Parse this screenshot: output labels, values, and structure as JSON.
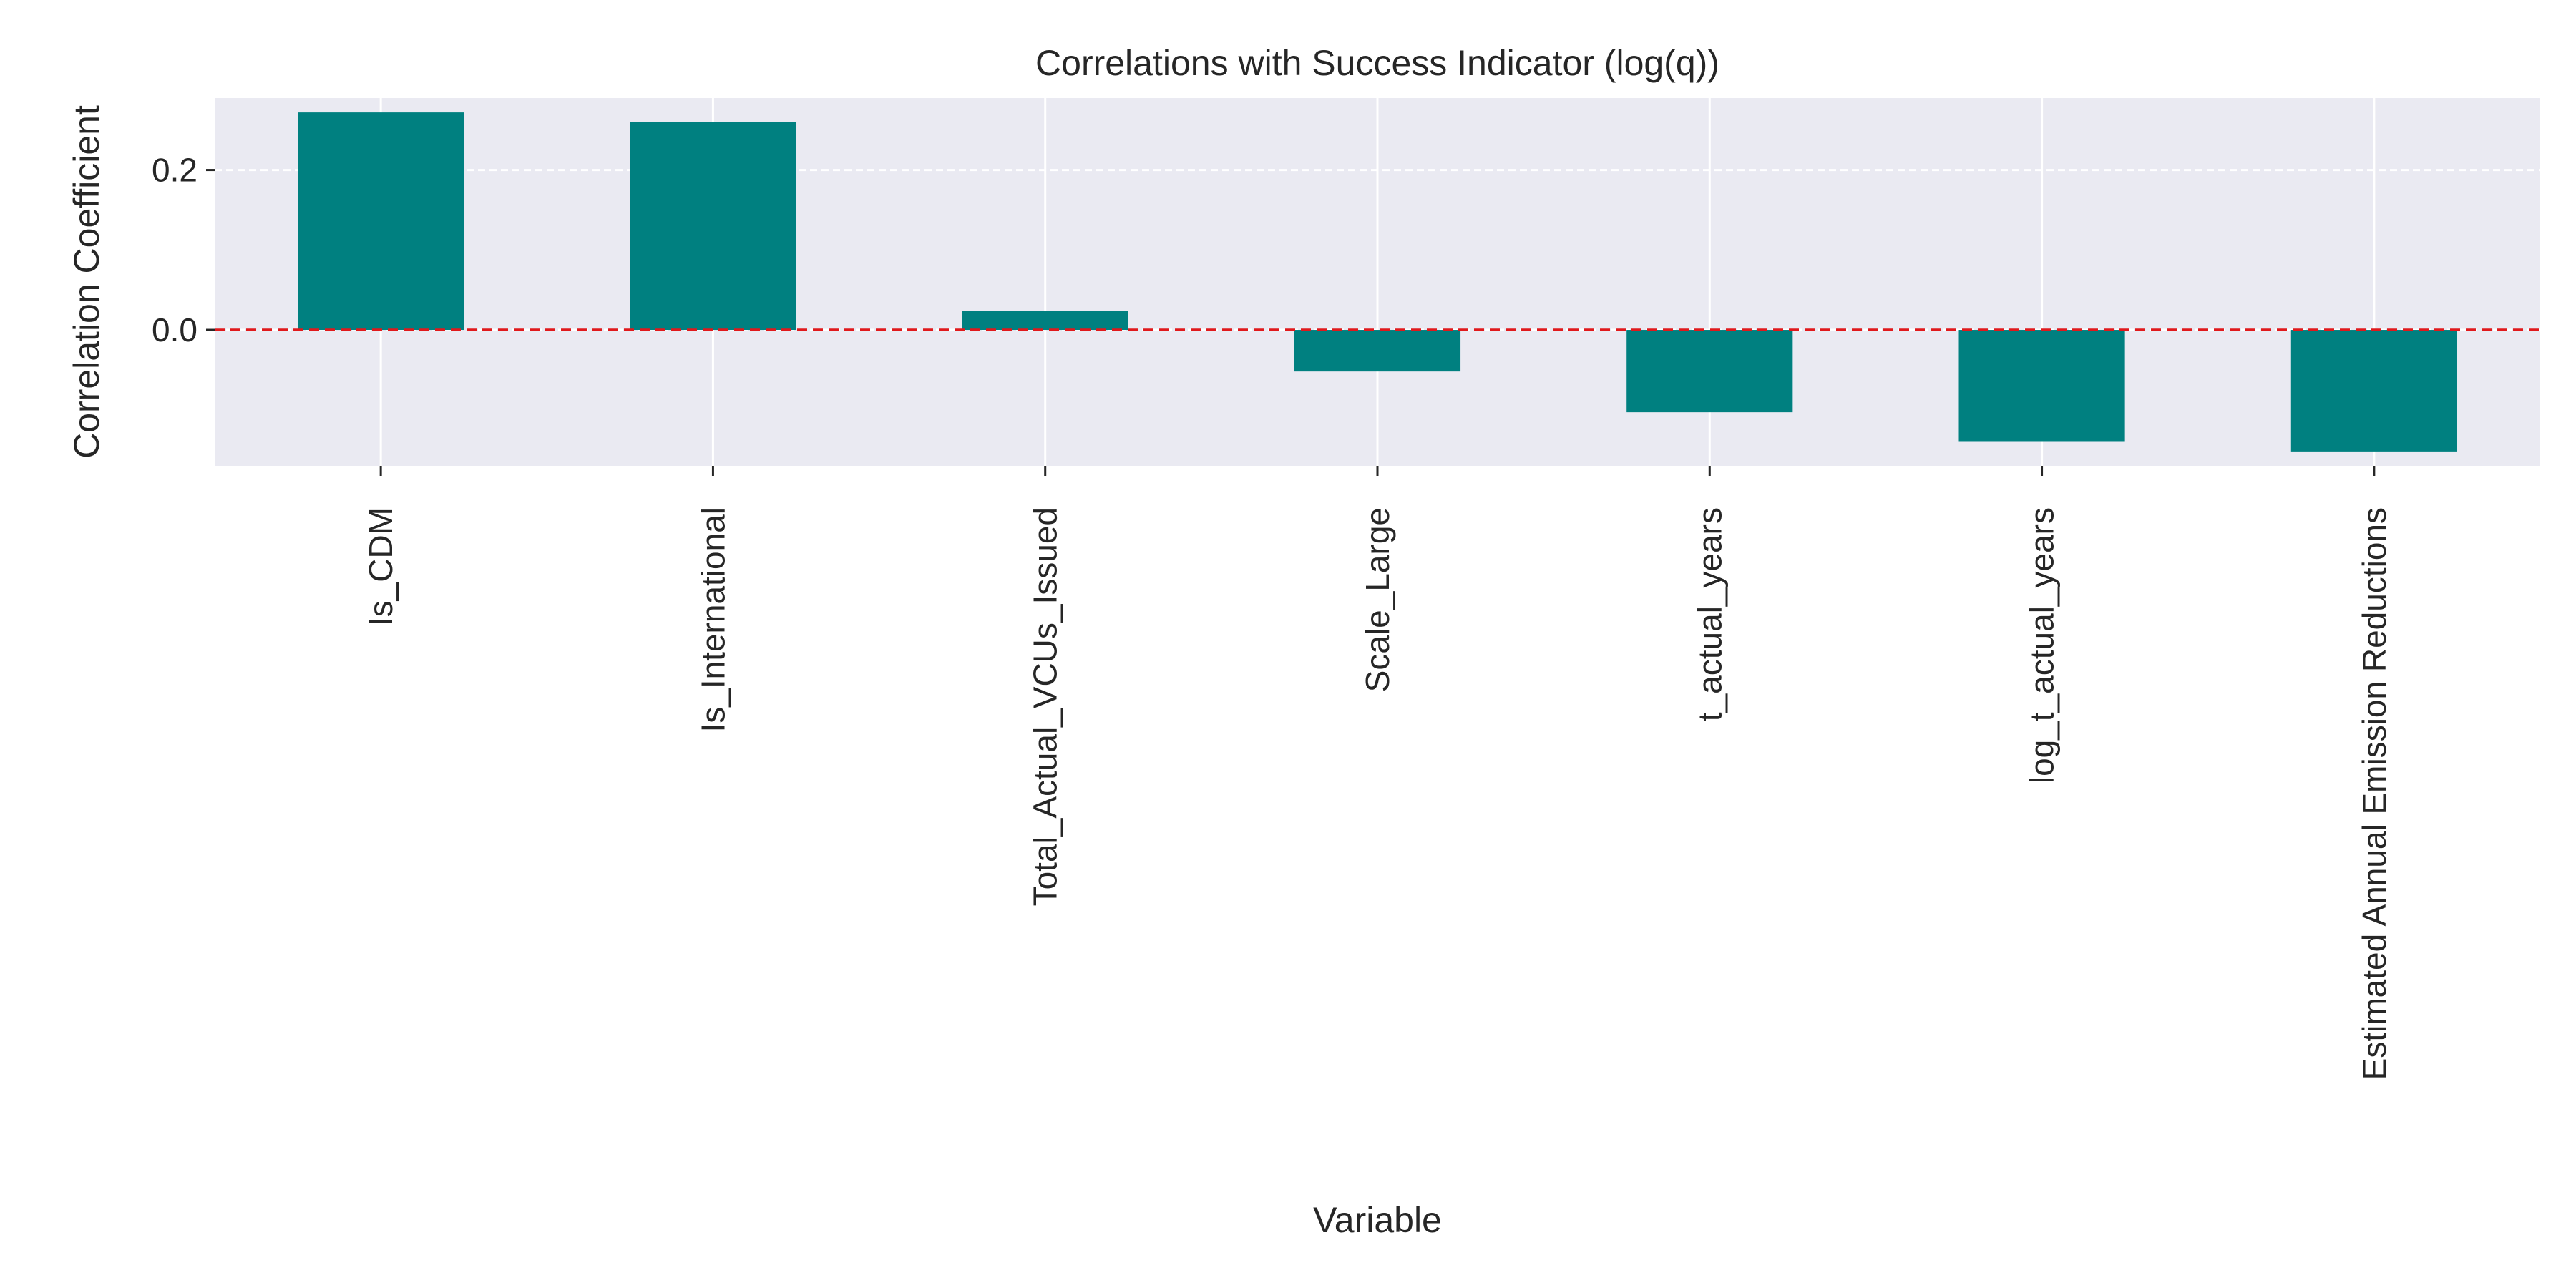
{
  "chart_data": {
    "type": "bar",
    "title": "Correlations with Success Indicator (log(q))",
    "xlabel": "Variable",
    "ylabel": "Correlation Coefficient",
    "categories": [
      "Is_CDM",
      "Is_International",
      "Total_Actual_VCUs_Issued",
      "Scale_Large",
      "t_actual_years",
      "log_t_actual_years",
      "Estimated Annual Emission Reductions"
    ],
    "values": [
      0.272,
      0.26,
      0.024,
      -0.052,
      -0.103,
      -0.14,
      -0.152
    ],
    "ylim": [
      -0.17,
      0.29
    ],
    "yticks": [
      0.0,
      0.2
    ],
    "ytick_labels": [
      "0.0",
      "0.2"
    ],
    "grid": true,
    "reference_line": {
      "y": 0.0,
      "style": "dashed",
      "color": "#e0191c"
    },
    "colors": {
      "bar": "#008080",
      "plot_background": "#eaeaf2",
      "grid": "#ffffff",
      "reference_line": "#e0191c"
    }
  }
}
